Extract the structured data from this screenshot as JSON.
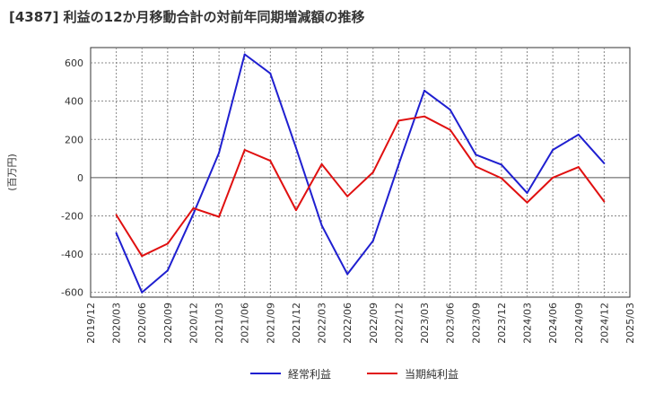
{
  "chart_data": {
    "type": "line",
    "title": "[4387]  利益の12か月移動合計の対前年同期増減額の推移",
    "ylabel": "(百万円)",
    "xlabel": "",
    "ylim": [
      -625,
      680
    ],
    "yticks": [
      600,
      400,
      200,
      0,
      -200,
      -400,
      -600
    ],
    "grid": true,
    "legend_position": "bottom-center",
    "categories": [
      "2019/12",
      "2020/03",
      "2020/06",
      "2020/09",
      "2020/12",
      "2021/03",
      "2021/06",
      "2021/09",
      "2021/12",
      "2022/03",
      "2022/06",
      "2022/09",
      "2022/12",
      "2023/03",
      "2023/06",
      "2023/09",
      "2023/12",
      "2024/03",
      "2024/06",
      "2024/09",
      "2024/12",
      "2025/03"
    ],
    "series": [
      {
        "name": "経常利益",
        "color": "#1f1fd0",
        "values": [
          null,
          -290,
          -600,
          -485,
          -190,
          130,
          645,
          545,
          155,
          -250,
          -505,
          -330,
          70,
          455,
          355,
          120,
          68,
          -80,
          145,
          225,
          75,
          null
        ]
      },
      {
        "name": "当期純利益",
        "color": "#e01010",
        "values": [
          null,
          -195,
          -410,
          -345,
          -160,
          -205,
          145,
          88,
          -170,
          70,
          -98,
          28,
          298,
          320,
          250,
          58,
          -3,
          -130,
          0,
          55,
          -125,
          null
        ]
      }
    ]
  }
}
